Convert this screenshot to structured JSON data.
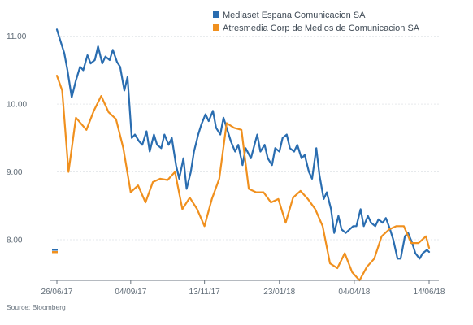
{
  "chart_data": {
    "type": "line",
    "title": "",
    "xlabel": "",
    "ylabel": "",
    "ylim": [
      7.4,
      11.2
    ],
    "y_ticks": [
      "11.00",
      "10.00",
      "9.00",
      "8.00"
    ],
    "y_tick_values": [
      11.0,
      10.0,
      9.0,
      8.0
    ],
    "x_tick_labels": [
      "26/06/17",
      "04/09/17",
      "13/11/17",
      "23/01/18",
      "04/04/18",
      "14/06/18"
    ],
    "x_tick_dates": [
      "2017-06-26",
      "2017-09-04",
      "2017-11-13",
      "2018-01-23",
      "2018-04-04",
      "2018-06-14"
    ],
    "xlim": [
      "2017-06-26",
      "2018-06-14"
    ],
    "grid": true,
    "legend_position": "top-right",
    "source": "Source: Bloomberg",
    "series": [
      {
        "name": "Mediaset Espana Comunicacion SA",
        "color": "#2a6db0",
        "x": [
          "2017-06-26",
          "2017-06-29",
          "2017-07-03",
          "2017-07-06",
          "2017-07-10",
          "2017-07-14",
          "2017-07-18",
          "2017-07-21",
          "2017-07-25",
          "2017-07-28",
          "2017-08-01",
          "2017-08-04",
          "2017-08-08",
          "2017-08-11",
          "2017-08-15",
          "2017-08-18",
          "2017-08-22",
          "2017-08-25",
          "2017-08-29",
          "2017-09-01",
          "2017-09-05",
          "2017-09-08",
          "2017-09-12",
          "2017-09-15",
          "2017-09-19",
          "2017-09-22",
          "2017-09-26",
          "2017-09-29",
          "2017-10-03",
          "2017-10-06",
          "2017-10-10",
          "2017-10-13",
          "2017-10-17",
          "2017-10-20",
          "2017-10-24",
          "2017-10-27",
          "2017-10-31",
          "2017-11-03",
          "2017-11-07",
          "2017-11-10",
          "2017-11-14",
          "2017-11-17",
          "2017-11-21",
          "2017-11-24",
          "2017-11-28",
          "2017-12-01",
          "2017-12-05",
          "2017-12-08",
          "2017-12-12",
          "2017-12-15",
          "2017-12-19",
          "2017-12-22",
          "2017-12-27",
          "2018-01-02",
          "2018-01-05",
          "2018-01-09",
          "2018-01-12",
          "2018-01-16",
          "2018-01-19",
          "2018-01-23",
          "2018-01-26",
          "2018-01-30",
          "2018-02-02",
          "2018-02-06",
          "2018-02-09",
          "2018-02-13",
          "2018-02-16",
          "2018-02-20",
          "2018-02-23",
          "2018-02-27",
          "2018-03-02",
          "2018-03-06",
          "2018-03-09",
          "2018-03-13",
          "2018-03-16",
          "2018-03-20",
          "2018-03-23",
          "2018-03-27",
          "2018-04-03",
          "2018-04-06",
          "2018-04-10",
          "2018-04-13",
          "2018-04-17",
          "2018-04-20",
          "2018-04-24",
          "2018-04-27",
          "2018-05-01",
          "2018-05-04",
          "2018-05-08",
          "2018-05-11",
          "2018-05-15",
          "2018-05-18",
          "2018-05-22",
          "2018-05-25",
          "2018-05-29",
          "2018-06-01",
          "2018-06-05",
          "2018-06-08",
          "2018-06-12",
          "2018-06-14"
        ],
        "y": [
          11.1,
          10.95,
          10.75,
          10.5,
          10.1,
          10.35,
          10.55,
          10.5,
          10.72,
          10.6,
          10.65,
          10.85,
          10.6,
          10.7,
          10.65,
          10.8,
          10.62,
          10.55,
          10.2,
          10.4,
          9.5,
          9.55,
          9.45,
          9.4,
          9.6,
          9.3,
          9.55,
          9.4,
          9.35,
          9.55,
          9.4,
          9.5,
          9.1,
          8.9,
          9.2,
          8.75,
          9.0,
          9.3,
          9.55,
          9.7,
          9.85,
          9.75,
          9.9,
          9.65,
          9.55,
          9.8,
          9.6,
          9.45,
          9.3,
          9.4,
          9.1,
          9.35,
          9.2,
          9.55,
          9.3,
          9.4,
          9.2,
          9.1,
          9.35,
          9.3,
          9.5,
          9.55,
          9.35,
          9.3,
          9.4,
          9.2,
          9.25,
          9.0,
          8.9,
          9.35,
          8.95,
          8.6,
          8.7,
          8.45,
          8.1,
          8.35,
          8.15,
          8.1,
          8.2,
          8.2,
          8.45,
          8.2,
          8.35,
          8.25,
          8.2,
          8.3,
          8.25,
          8.32,
          8.15,
          8.0,
          7.72,
          7.72,
          8.05,
          8.1,
          7.95,
          7.8,
          7.72,
          7.8,
          7.85,
          7.82
        ]
      },
      {
        "name": "Atresmedia Corp de Medios de Comunicacion SA",
        "color": "#f0901e",
        "x": [
          "2017-06-26",
          "2017-07-01",
          "2017-07-07",
          "2017-07-14",
          "2017-07-24",
          "2017-07-31",
          "2017-08-07",
          "2017-08-14",
          "2017-08-21",
          "2017-08-28",
          "2017-09-04",
          "2017-09-11",
          "2017-09-18",
          "2017-09-25",
          "2017-10-02",
          "2017-10-09",
          "2017-10-16",
          "2017-10-23",
          "2017-10-30",
          "2017-11-06",
          "2017-11-13",
          "2017-11-20",
          "2017-11-27",
          "2017-12-04",
          "2017-12-11",
          "2017-12-18",
          "2017-12-25",
          "2018-01-01",
          "2018-01-08",
          "2018-01-15",
          "2018-01-22",
          "2018-01-29",
          "2018-02-05",
          "2018-02-12",
          "2018-02-19",
          "2018-02-26",
          "2018-03-05",
          "2018-03-12",
          "2018-03-19",
          "2018-03-26",
          "2018-04-02",
          "2018-04-09",
          "2018-04-16",
          "2018-04-23",
          "2018-04-30",
          "2018-05-07",
          "2018-05-14",
          "2018-05-21",
          "2018-05-28",
          "2018-06-04",
          "2018-06-11",
          "2018-06-14"
        ],
        "y": [
          10.42,
          10.2,
          9.0,
          9.8,
          9.62,
          9.9,
          10.12,
          9.88,
          9.78,
          9.35,
          8.7,
          8.8,
          8.55,
          8.85,
          8.9,
          8.88,
          9.0,
          8.45,
          8.62,
          8.45,
          8.2,
          8.6,
          8.9,
          9.72,
          9.65,
          9.62,
          8.75,
          8.7,
          8.7,
          8.55,
          8.6,
          8.25,
          8.62,
          8.72,
          8.6,
          8.45,
          8.2,
          7.65,
          7.58,
          7.8,
          7.52,
          7.4,
          7.6,
          7.72,
          8.05,
          8.15,
          8.2,
          8.2,
          7.95,
          7.95,
          8.05,
          7.88
        ]
      }
    ]
  }
}
